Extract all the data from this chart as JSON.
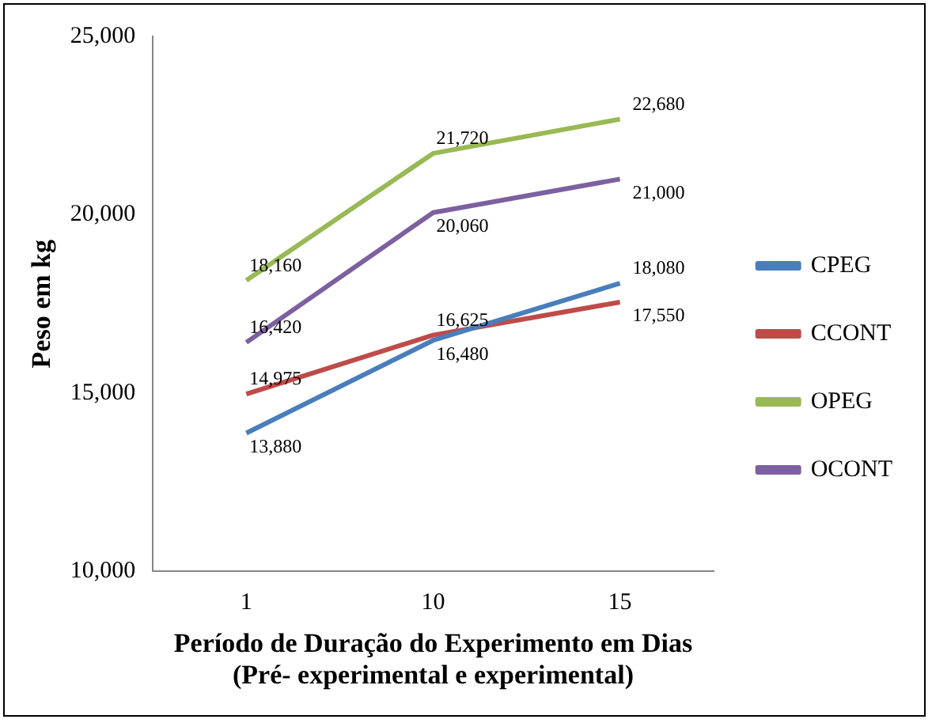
{
  "chart_data": {
    "type": "line",
    "xlabel": "Período de Duração do Experimento em Dias\n(Pré- experimental e experimental)",
    "ylabel": "Peso em kg",
    "categories": [
      "1",
      "10",
      "15"
    ],
    "series": [
      {
        "name": "CPEG",
        "color": "#4a7ebb",
        "values": [
          13880,
          16480,
          18080
        ],
        "value_labels": [
          "13,880",
          "16,480",
          "18,080"
        ]
      },
      {
        "name": "CCONT",
        "color": "#be4b48",
        "values": [
          14975,
          16625,
          17550
        ],
        "value_labels": [
          "14,975",
          "16,625",
          "17,550"
        ]
      },
      {
        "name": "OPEG",
        "color": "#98b954",
        "values": [
          18160,
          21720,
          22680
        ],
        "value_labels": [
          "18,160",
          "21,720",
          "22,680"
        ]
      },
      {
        "name": "OCONT",
        "color": "#7d60a0",
        "values": [
          16420,
          20060,
          21000
        ],
        "value_labels": [
          "16,420",
          "20,060",
          "21,000"
        ]
      }
    ],
    "ylim": [
      10000,
      25000
    ],
    "yticks": [
      {
        "value": 10000,
        "label": "10,000"
      },
      {
        "value": 15000,
        "label": "15,000"
      },
      {
        "value": 20000,
        "label": "20,000"
      },
      {
        "value": 25000,
        "label": "25,000"
      }
    ],
    "grid": false,
    "legend": "right",
    "marker": "none",
    "line_style": "solid"
  }
}
